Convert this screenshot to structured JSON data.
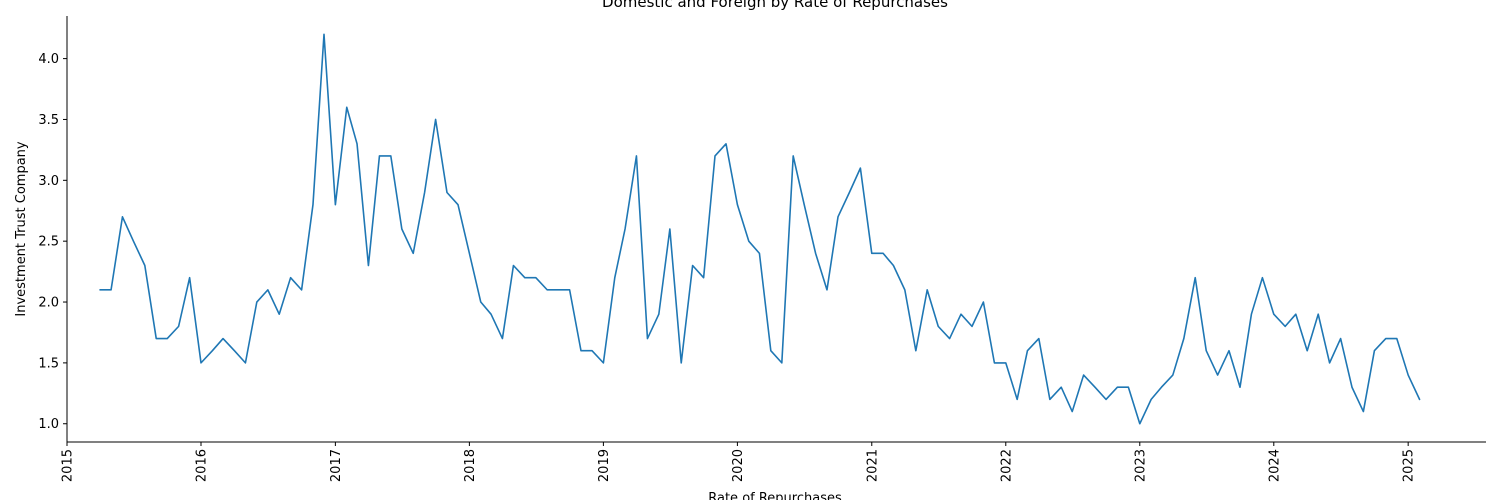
{
  "chart_data": {
    "type": "line",
    "title": "Domestic and Foreign by Rate of Repurchases",
    "xlabel": "Rate of Repurchases",
    "ylabel": "Investment Trust Company",
    "x_ticks": [
      "2015",
      "2016",
      "2017",
      "2018",
      "2019",
      "2020",
      "2021",
      "2022",
      "2023",
      "2024",
      "2025"
    ],
    "y_ticks": [
      "1.0",
      "1.5",
      "2.0",
      "2.5",
      "3.0",
      "3.5",
      "4.0"
    ],
    "xlim": [
      "2015-01-01",
      "2025-08-01"
    ],
    "ylim": [
      0.85,
      4.35
    ],
    "grid": false,
    "colors": {
      "line": "#1f77b4"
    },
    "series": [
      {
        "x": [
          "2015-04",
          "2015-05",
          "2015-06",
          "2015-07",
          "2015-08",
          "2015-09",
          "2015-10",
          "2015-11",
          "2015-12",
          "2016-01",
          "2016-02",
          "2016-03",
          "2016-04",
          "2016-05",
          "2016-06",
          "2016-07",
          "2016-08",
          "2016-09",
          "2016-10",
          "2016-11",
          "2016-12",
          "2017-01",
          "2017-02",
          "2017-03",
          "2017-04",
          "2017-05",
          "2017-06",
          "2017-07",
          "2017-08",
          "2017-09",
          "2017-10",
          "2017-11",
          "2017-12",
          "2018-01",
          "2018-02",
          "2018-03",
          "2018-04",
          "2018-05",
          "2018-06",
          "2018-07",
          "2018-08",
          "2018-09",
          "2018-10",
          "2018-11",
          "2018-12",
          "2019-01",
          "2019-02",
          "2019-03",
          "2019-04",
          "2019-05",
          "2019-06",
          "2019-07",
          "2019-08",
          "2019-09",
          "2019-10",
          "2019-11",
          "2019-12",
          "2020-01",
          "2020-02",
          "2020-03",
          "2020-04",
          "2020-05",
          "2020-06",
          "2020-07",
          "2020-08",
          "2020-09",
          "2020-10",
          "2020-11",
          "2020-12",
          "2021-01",
          "2021-02",
          "2021-03",
          "2021-04",
          "2021-05",
          "2021-06",
          "2021-07",
          "2021-08",
          "2021-09",
          "2021-10",
          "2021-11",
          "2021-12",
          "2022-01",
          "2022-02",
          "2022-03",
          "2022-04",
          "2022-05",
          "2022-06",
          "2022-07",
          "2022-08",
          "2022-09",
          "2022-10",
          "2022-11",
          "2022-12",
          "2023-01",
          "2023-02",
          "2023-03",
          "2023-04",
          "2023-05",
          "2023-06",
          "2023-07",
          "2023-08",
          "2023-09",
          "2023-10",
          "2023-11",
          "2023-12",
          "2024-01",
          "2024-02",
          "2024-03",
          "2024-04",
          "2024-05",
          "2024-06",
          "2024-07",
          "2024-08",
          "2024-09",
          "2024-10",
          "2024-11",
          "2024-12",
          "2025-01",
          "2025-02"
        ],
        "values": [
          2.1,
          2.1,
          2.7,
          2.5,
          2.3,
          1.7,
          1.7,
          1.8,
          2.2,
          1.5,
          1.6,
          1.7,
          1.6,
          1.5,
          2.0,
          2.1,
          1.9,
          2.2,
          2.1,
          2.8,
          4.2,
          2.8,
          3.6,
          3.3,
          2.3,
          3.2,
          3.2,
          2.6,
          2.4,
          2.9,
          3.5,
          2.9,
          2.8,
          2.4,
          2.0,
          1.9,
          1.7,
          2.3,
          2.2,
          2.2,
          2.1,
          2.1,
          2.1,
          1.6,
          1.6,
          1.5,
          2.2,
          2.6,
          3.2,
          1.7,
          1.9,
          2.6,
          1.5,
          2.3,
          2.2,
          3.2,
          3.3,
          2.8,
          2.5,
          2.4,
          1.6,
          1.5,
          3.2,
          2.8,
          2.4,
          2.1,
          2.7,
          2.9,
          3.1,
          2.4,
          2.4,
          2.3,
          2.1,
          1.6,
          2.1,
          1.8,
          1.7,
          1.9,
          1.8,
          2.0,
          1.5,
          1.5,
          1.2,
          1.6,
          1.7,
          1.2,
          1.3,
          1.1,
          1.4,
          1.3,
          1.2,
          1.3,
          1.3,
          1.0,
          1.2,
          1.3,
          1.4,
          1.7,
          2.2,
          1.6,
          1.4,
          1.6,
          1.3,
          1.9,
          2.2,
          1.9,
          1.8,
          1.9,
          1.6,
          1.9,
          1.5,
          1.7,
          1.3,
          1.1,
          1.6,
          1.7,
          1.7,
          1.4,
          1.2
        ]
      }
    ]
  }
}
